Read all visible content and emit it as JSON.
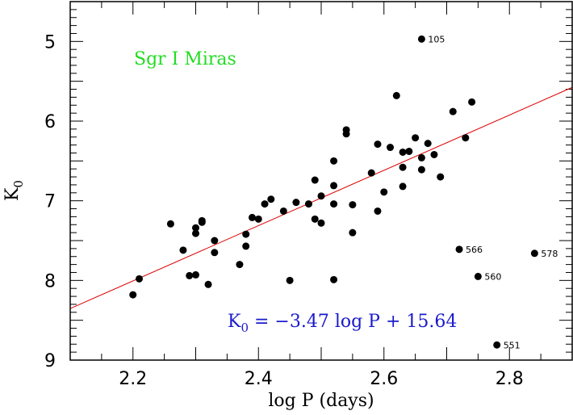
{
  "chart_data": {
    "type": "scatter",
    "title": "",
    "xlabel": "log P (days)",
    "ylabel_main": "K",
    "ylabel_sub": "0",
    "xlim": [
      2.1,
      2.9
    ],
    "ylim": [
      9.0,
      4.5
    ],
    "y_inverted": true,
    "xticks": [
      2.2,
      2.4,
      2.6,
      2.8
    ],
    "xtick_labels": [
      "2.2",
      "2.4",
      "2.6",
      "2.8"
    ],
    "yticks": [
      5,
      6,
      7,
      8,
      9
    ],
    "ytick_labels": [
      "5",
      "6",
      "7",
      "8",
      "9"
    ],
    "annotation": "Sgr I Miras",
    "annotation_color": "#22dd22",
    "fit_label": {
      "lhs_main": "K",
      "lhs_sub": "0",
      "rhs": " = −3.47 log P + 15.64"
    },
    "fit_color": "#1a1acc",
    "fit": {
      "slope": -3.47,
      "intercept": 15.64,
      "color": "#dd0000"
    },
    "series": [
      {
        "marker_color": "#000000",
        "points": [
          [
            2.2,
            8.18
          ],
          [
            2.21,
            7.98
          ],
          [
            2.26,
            7.29
          ],
          [
            2.28,
            7.62
          ],
          [
            2.29,
            7.94
          ],
          [
            2.3,
            7.34
          ],
          [
            2.3,
            7.41
          ],
          [
            2.3,
            7.93
          ],
          [
            2.31,
            7.27
          ],
          [
            2.31,
            7.25
          ],
          [
            2.32,
            8.05
          ],
          [
            2.33,
            7.5
          ],
          [
            2.33,
            7.65
          ],
          [
            2.37,
            7.8
          ],
          [
            2.38,
            7.42
          ],
          [
            2.38,
            7.57
          ],
          [
            2.39,
            7.21
          ],
          [
            2.4,
            7.23
          ],
          [
            2.41,
            7.04
          ],
          [
            2.42,
            6.98
          ],
          [
            2.44,
            7.13
          ],
          [
            2.45,
            8.0
          ],
          [
            2.46,
            7.02
          ],
          [
            2.48,
            7.04
          ],
          [
            2.49,
            6.74
          ],
          [
            2.49,
            7.23
          ],
          [
            2.5,
            7.28
          ],
          [
            2.5,
            6.94
          ],
          [
            2.52,
            6.5
          ],
          [
            2.52,
            6.81
          ],
          [
            2.52,
            7.04
          ],
          [
            2.52,
            7.99
          ],
          [
            2.54,
            6.11
          ],
          [
            2.54,
            6.16
          ],
          [
            2.55,
            7.4
          ],
          [
            2.55,
            7.05
          ],
          [
            2.58,
            6.65
          ],
          [
            2.59,
            6.29
          ],
          [
            2.59,
            7.13
          ],
          [
            2.6,
            6.89
          ],
          [
            2.61,
            6.33
          ],
          [
            2.62,
            5.68
          ],
          [
            2.63,
            6.39
          ],
          [
            2.63,
            6.58
          ],
          [
            2.63,
            6.82
          ],
          [
            2.64,
            6.38
          ],
          [
            2.65,
            6.21
          ],
          [
            2.66,
            6.46
          ],
          [
            2.66,
            6.61
          ],
          [
            2.67,
            6.28
          ],
          [
            2.68,
            6.42
          ],
          [
            2.69,
            6.7
          ],
          [
            2.71,
            5.88
          ],
          [
            2.73,
            6.21
          ],
          [
            2.74,
            5.76
          ]
        ]
      },
      {
        "marker_color": "#000000",
        "labeled": true,
        "points": [
          {
            "x": 2.66,
            "y": 4.97,
            "label": "105"
          },
          {
            "x": 2.72,
            "y": 7.61,
            "label": "566"
          },
          {
            "x": 2.75,
            "y": 7.95,
            "label": "560"
          },
          {
            "x": 2.78,
            "y": 8.81,
            "label": "551"
          },
          {
            "x": 2.84,
            "y": 7.66,
            "label": "578"
          }
        ]
      }
    ]
  }
}
